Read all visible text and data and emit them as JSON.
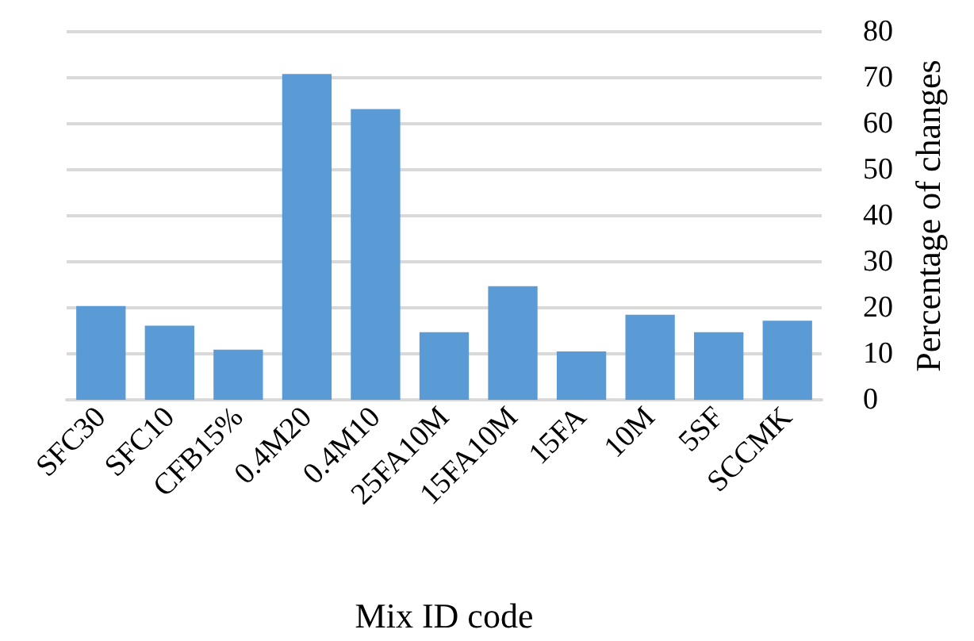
{
  "chart_data": {
    "type": "bar",
    "xlabel": "Mix ID code",
    "ylabel": "Percentage of changes",
    "categories": [
      "SFC30",
      "SFC10",
      "CFB15%",
      "0.4M20",
      "0.4M10",
      "25FA10M",
      "15FA10M",
      "15FA",
      "10M",
      "5SF",
      "SCCMK"
    ],
    "values": [
      20.4,
      16.1,
      10.9,
      70.8,
      63.2,
      14.7,
      24.7,
      10.5,
      18.5,
      14.7,
      17.2
    ],
    "color": "#5b9bd5",
    "ylim": [
      0,
      80
    ],
    "yticks": [
      0,
      10,
      20,
      30,
      40,
      50,
      60,
      70,
      80
    ],
    "grid": "y"
  }
}
